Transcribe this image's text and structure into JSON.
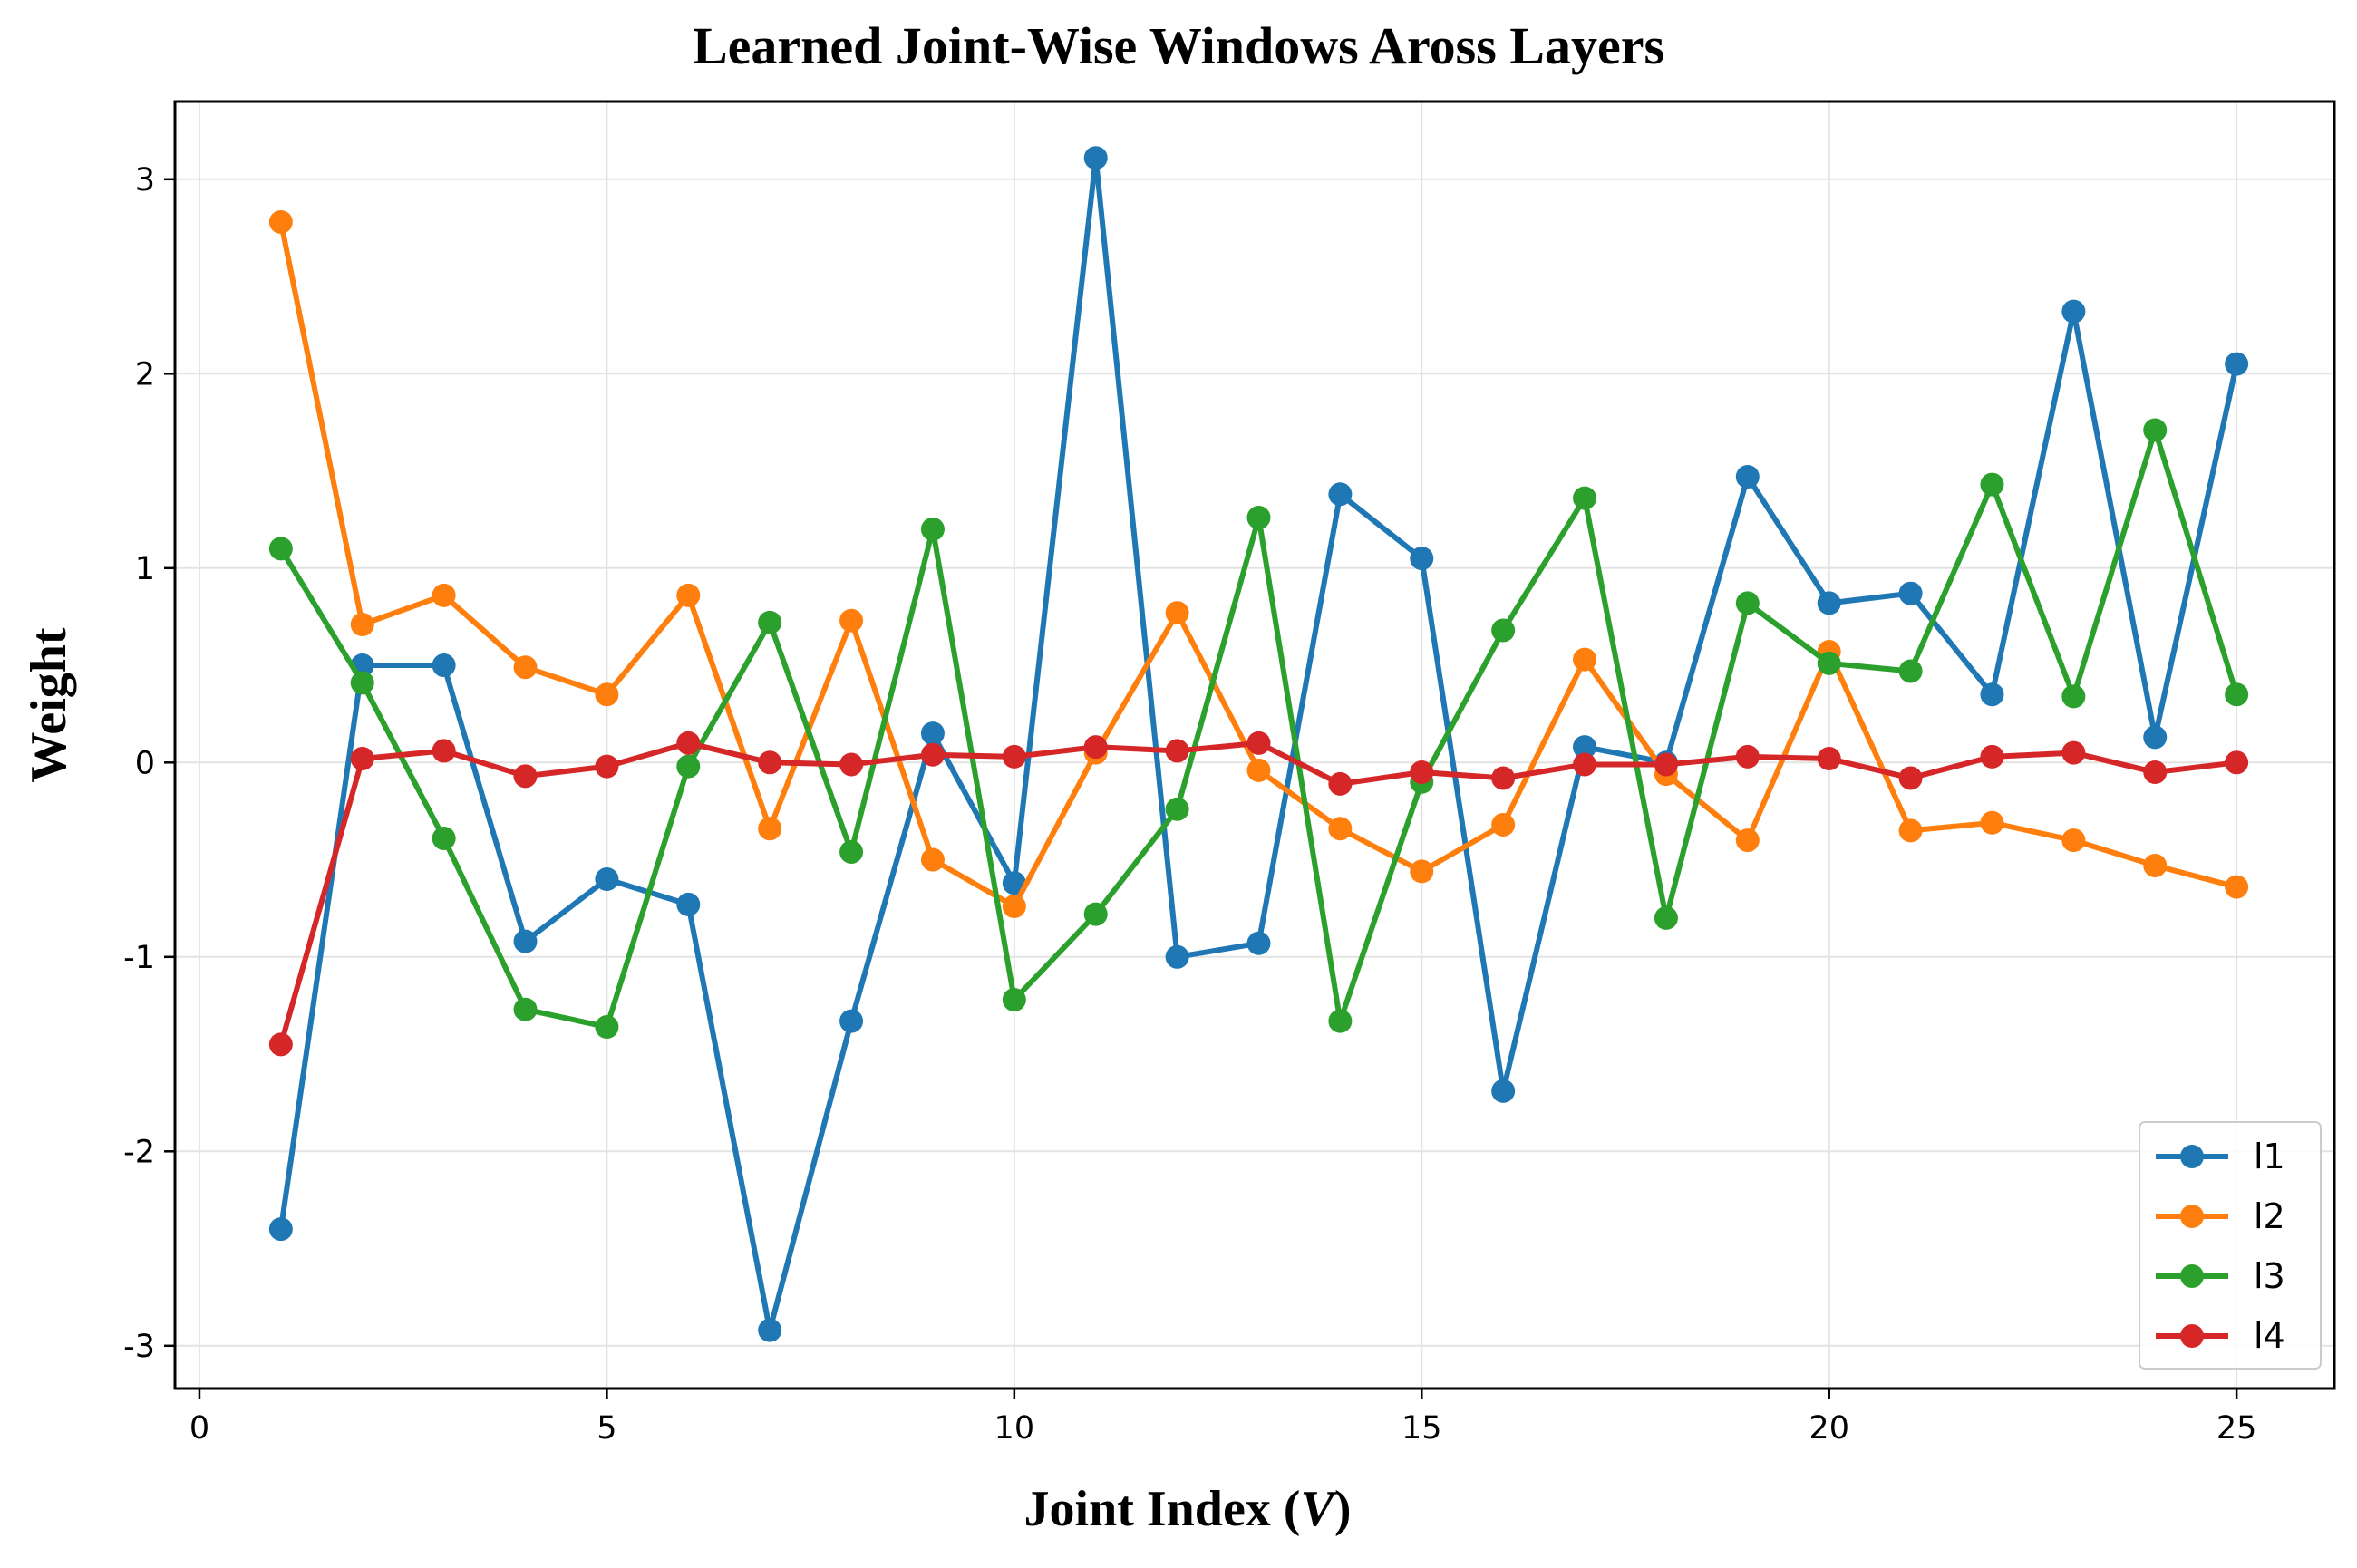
{
  "chart_data": {
    "type": "line",
    "title": "Learned Joint-Wise Windows Aross Layers",
    "xlabel_prefix": "Joint Index (",
    "xlabel_var": "V",
    "xlabel_suffix": ")",
    "ylabel": "Weight",
    "xlim": [
      -0.3,
      26.2
    ],
    "ylim": [
      -3.22,
      3.4
    ],
    "xticks": [
      0,
      5,
      10,
      15,
      20,
      25
    ],
    "yticks": [
      -3,
      -2,
      -1,
      0,
      1,
      2,
      3
    ],
    "grid": true,
    "legend_position": "lower-right",
    "x": [
      1,
      2,
      3,
      4,
      5,
      6,
      7,
      8,
      9,
      10,
      11,
      12,
      13,
      14,
      15,
      16,
      17,
      18,
      19,
      20,
      21,
      22,
      23,
      24,
      25
    ],
    "series": [
      {
        "name": "l1",
        "color": "#1f77b4",
        "values": [
          -2.4,
          0.5,
          0.5,
          -0.92,
          -0.6,
          -0.73,
          -2.92,
          -1.33,
          0.15,
          -0.62,
          3.11,
          -1.0,
          -0.93,
          1.38,
          1.05,
          -1.69,
          0.08,
          0.0,
          1.47,
          0.82,
          0.87,
          0.35,
          2.32,
          0.13,
          2.05
        ]
      },
      {
        "name": "l2",
        "color": "#ff7f0e",
        "values": [
          2.78,
          0.71,
          0.86,
          0.49,
          0.35,
          0.86,
          -0.34,
          0.73,
          -0.5,
          -0.74,
          0.05,
          0.77,
          -0.04,
          -0.34,
          -0.56,
          -0.32,
          0.53,
          -0.06,
          -0.4,
          0.57,
          -0.35,
          -0.31,
          -0.4,
          -0.53,
          -0.64
        ]
      },
      {
        "name": "l3",
        "color": "#2ca02c",
        "values": [
          1.1,
          0.41,
          -0.39,
          -1.27,
          -1.36,
          -0.02,
          0.72,
          -0.46,
          1.2,
          -1.22,
          -0.78,
          -0.24,
          1.26,
          -1.33,
          -0.1,
          0.68,
          1.36,
          -0.8,
          0.82,
          0.51,
          0.47,
          1.43,
          0.34,
          1.71,
          0.35
        ]
      },
      {
        "name": "l4",
        "color": "#d62728",
        "values": [
          -1.45,
          0.02,
          0.06,
          -0.07,
          -0.02,
          0.1,
          0.0,
          -0.01,
          0.04,
          0.03,
          0.08,
          0.06,
          0.1,
          -0.11,
          -0.05,
          -0.08,
          -0.01,
          -0.01,
          0.03,
          0.02,
          -0.08,
          0.03,
          0.05,
          -0.05,
          0.0
        ]
      }
    ]
  }
}
